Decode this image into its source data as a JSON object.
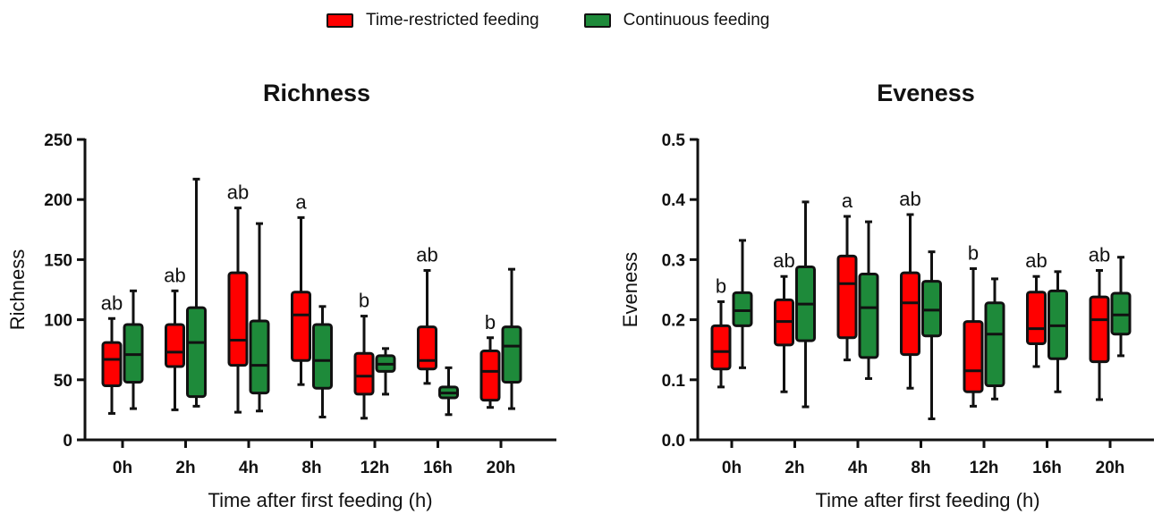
{
  "legend": {
    "trf_label": "Time-restricted feeding",
    "cf_label": "Continuous feeding"
  },
  "colors": {
    "trf": "#ff0000",
    "cf": "#1e8a3a",
    "stroke": "#111111"
  },
  "chart_data": [
    {
      "type": "boxplot",
      "title": "Richness",
      "xlabel": "Time after first feeding (h)",
      "ylabel": "Richness",
      "ylim": [
        0,
        250
      ],
      "yticks": [
        0,
        50,
        100,
        150,
        200,
        250
      ],
      "ytick_labels": [
        "0",
        "50",
        "100",
        "150",
        "200",
        "250"
      ],
      "categories": [
        "0h",
        "2h",
        "4h",
        "8h",
        "12h",
        "16h",
        "20h"
      ],
      "letters": [
        "ab",
        "ab",
        "ab",
        "a",
        "b",
        "ab",
        "b"
      ],
      "series": [
        {
          "name": "Time-restricted feeding",
          "boxes": [
            {
              "min": 22,
              "q1": 45,
              "median": 67,
              "q3": 81,
              "max": 101
            },
            {
              "min": 25,
              "q1": 61,
              "median": 73,
              "q3": 96,
              "max": 124
            },
            {
              "min": 23,
              "q1": 62,
              "median": 83,
              "q3": 139,
              "max": 193
            },
            {
              "min": 46,
              "q1": 66,
              "median": 104,
              "q3": 123,
              "max": 185
            },
            {
              "min": 18,
              "q1": 38,
              "median": 53,
              "q3": 72,
              "max": 103
            },
            {
              "min": 47,
              "q1": 59,
              "median": 66,
              "q3": 94,
              "max": 141
            },
            {
              "min": 27,
              "q1": 33,
              "median": 57,
              "q3": 74,
              "max": 85
            }
          ]
        },
        {
          "name": "Continuous feeding",
          "boxes": [
            {
              "min": 26,
              "q1": 48,
              "median": 71,
              "q3": 96,
              "max": 124
            },
            {
              "min": 28,
              "q1": 36,
              "median": 81,
              "q3": 110,
              "max": 217
            },
            {
              "min": 24,
              "q1": 39,
              "median": 62,
              "q3": 99,
              "max": 180
            },
            {
              "min": 19,
              "q1": 43,
              "median": 66,
              "q3": 96,
              "max": 111
            },
            {
              "min": 38,
              "q1": 57,
              "median": 63,
              "q3": 70,
              "max": 76
            },
            {
              "min": 21,
              "q1": 35,
              "median": 39,
              "q3": 44,
              "max": 60
            },
            {
              "min": 26,
              "q1": 48,
              "median": 78,
              "q3": 94,
              "max": 142
            }
          ]
        }
      ]
    },
    {
      "type": "boxplot",
      "title": "Eveness",
      "xlabel": "Time after first feeding (h)",
      "ylabel": "Eveness",
      "ylim": [
        0,
        0.5
      ],
      "yticks": [
        0,
        0.1,
        0.2,
        0.3,
        0.4,
        0.5
      ],
      "ytick_labels": [
        "0.0",
        "0.1",
        "0.2",
        "0.3",
        "0.4",
        "0.5"
      ],
      "categories": [
        "0h",
        "2h",
        "4h",
        "8h",
        "12h",
        "16h",
        "20h"
      ],
      "letters": [
        "b",
        "ab",
        "a",
        "ab",
        "b",
        "ab",
        "ab"
      ],
      "series": [
        {
          "name": "Time-restricted feeding",
          "boxes": [
            {
              "min": 0.088,
              "q1": 0.118,
              "median": 0.147,
              "q3": 0.19,
              "max": 0.23
            },
            {
              "min": 0.08,
              "q1": 0.158,
              "median": 0.197,
              "q3": 0.233,
              "max": 0.272
            },
            {
              "min": 0.133,
              "q1": 0.17,
              "median": 0.26,
              "q3": 0.306,
              "max": 0.372
            },
            {
              "min": 0.086,
              "q1": 0.142,
              "median": 0.228,
              "q3": 0.278,
              "max": 0.375
            },
            {
              "min": 0.056,
              "q1": 0.08,
              "median": 0.115,
              "q3": 0.197,
              "max": 0.285
            },
            {
              "min": 0.122,
              "q1": 0.16,
              "median": 0.185,
              "q3": 0.246,
              "max": 0.272
            },
            {
              "min": 0.067,
              "q1": 0.13,
              "median": 0.2,
              "q3": 0.238,
              "max": 0.282
            }
          ]
        },
        {
          "name": "Continuous feeding",
          "boxes": [
            {
              "min": 0.12,
              "q1": 0.19,
              "median": 0.215,
              "q3": 0.245,
              "max": 0.332
            },
            {
              "min": 0.055,
              "q1": 0.165,
              "median": 0.226,
              "q3": 0.288,
              "max": 0.396
            },
            {
              "min": 0.102,
              "q1": 0.137,
              "median": 0.22,
              "q3": 0.276,
              "max": 0.363
            },
            {
              "min": 0.035,
              "q1": 0.173,
              "median": 0.216,
              "q3": 0.264,
              "max": 0.313
            },
            {
              "min": 0.068,
              "q1": 0.09,
              "median": 0.176,
              "q3": 0.228,
              "max": 0.268
            },
            {
              "min": 0.08,
              "q1": 0.135,
              "median": 0.19,
              "q3": 0.248,
              "max": 0.28
            },
            {
              "min": 0.14,
              "q1": 0.176,
              "median": 0.208,
              "q3": 0.244,
              "max": 0.304
            }
          ]
        }
      ]
    }
  ]
}
